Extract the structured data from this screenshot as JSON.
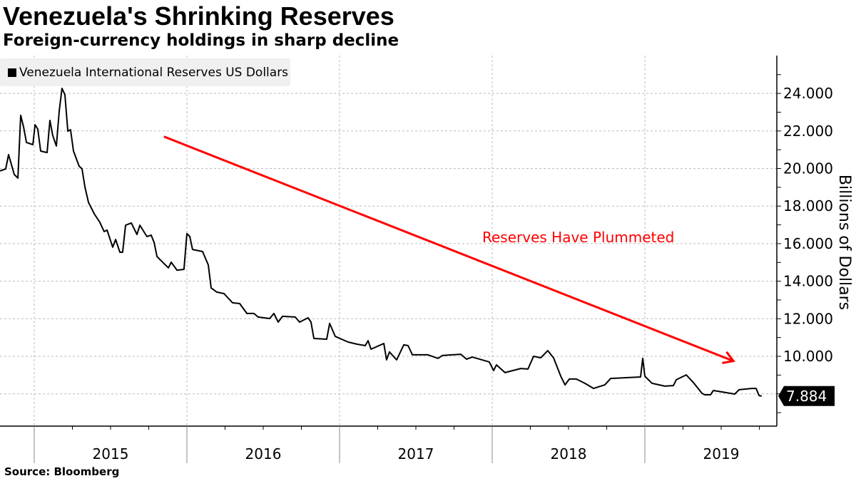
{
  "title": "Venezuela's Shrinking Reserves",
  "subtitle": "Foreign-currency holdings in sharp decline",
  "source": "Source: Bloomberg",
  "colors": {
    "line": "#000000",
    "annotation": "#ff0000",
    "grid": "#bbbbbb"
  },
  "chart_data": {
    "type": "line",
    "title": "Venezuela's Shrinking Reserves",
    "ylabel": "Billions of Dollars",
    "xlabel": "",
    "ylim": [
      6.0,
      25.7
    ],
    "xlim": [
      2014.776,
      2020.0
    ],
    "yticks": [
      10,
      12,
      14,
      16,
      18,
      20,
      22,
      24
    ],
    "ytick_labels": [
      "10.000",
      "12.000",
      "14.000",
      "16.000",
      "18.000",
      "20.000",
      "22.000",
      "24.000"
    ],
    "year_labels": [
      "2015",
      "2016",
      "2017",
      "2018",
      "2019"
    ],
    "grid": true,
    "legend_position": "top-left",
    "series": [
      {
        "name": "Venezuela International Reserves US Dollars",
        "x": [
          2014.776,
          2014.813,
          2014.832,
          2014.869,
          2014.893,
          2014.911,
          2014.93,
          2014.949,
          2014.991,
          2015.005,
          2015.023,
          2015.042,
          2015.084,
          2015.103,
          2015.121,
          2015.145,
          2015.164,
          2015.182,
          2015.201,
          2015.22,
          2015.238,
          2015.257,
          2015.294,
          2015.313,
          2015.332,
          2015.355,
          2015.393,
          2015.43,
          2015.458,
          2015.477,
          2015.514,
          2015.533,
          2015.561,
          2015.579,
          2015.598,
          2015.636,
          2015.673,
          2015.692,
          2015.738,
          2015.766,
          2015.785,
          2015.804,
          2015.86,
          2015.879,
          2015.897,
          2015.935,
          2015.981,
          2016.0,
          2016.019,
          2016.037,
          2016.103,
          2016.14,
          2016.159,
          2016.196,
          2016.243,
          2016.299,
          2016.346,
          2016.393,
          2016.439,
          2016.467,
          2016.542,
          2016.57,
          2016.598,
          2016.626,
          2016.71,
          2016.738,
          2016.794,
          2016.813,
          2016.832,
          2016.916,
          2016.935,
          2016.972,
          2017.056,
          2017.112,
          2017.168,
          2017.187,
          2017.206,
          2017.29,
          2017.308,
          2017.327,
          2017.374,
          2017.421,
          2017.449,
          2017.477,
          2017.579,
          2017.645,
          2017.673,
          2017.794,
          2017.832,
          2017.869,
          2017.981,
          2018.009,
          2018.028,
          2018.084,
          2018.187,
          2018.234,
          2018.271,
          2018.318,
          2018.364,
          2018.402,
          2018.449,
          2018.477,
          2018.505,
          2018.551,
          2018.607,
          2018.664,
          2018.738,
          2018.776,
          2018.972,
          2018.986,
          2019.0,
          2019.047,
          2019.131,
          2019.187,
          2019.206,
          2019.271,
          2019.318,
          2019.374,
          2019.393,
          2019.43,
          2019.449,
          2019.589,
          2019.617,
          2019.701,
          2019.729,
          2019.748,
          2019.766
        ],
        "values": [
          19.87,
          19.98,
          20.74,
          19.68,
          19.49,
          22.83,
          22.22,
          21.39,
          21.27,
          22.33,
          22.11,
          20.93,
          20.85,
          22.56,
          21.76,
          21.2,
          23.09,
          24.27,
          23.93,
          21.99,
          22.07,
          20.93,
          20.13,
          19.98,
          19.03,
          18.2,
          17.59,
          17.13,
          16.64,
          16.72,
          15.81,
          16.22,
          15.54,
          15.54,
          16.98,
          17.1,
          16.49,
          16.98,
          16.38,
          16.45,
          16.07,
          15.31,
          14.86,
          14.71,
          15.01,
          14.59,
          14.63,
          16.53,
          16.38,
          15.69,
          15.58,
          14.86,
          13.64,
          13.42,
          13.34,
          12.85,
          12.81,
          12.28,
          12.28,
          12.09,
          12.01,
          12.28,
          11.82,
          12.13,
          12.09,
          11.82,
          12.05,
          11.82,
          10.95,
          10.91,
          11.75,
          11.06,
          10.76,
          10.65,
          10.57,
          10.83,
          10.38,
          10.68,
          9.81,
          10.23,
          9.81,
          10.61,
          10.57,
          10.08,
          10.08,
          9.89,
          10.04,
          10.11,
          9.85,
          9.96,
          9.7,
          9.24,
          9.54,
          9.13,
          9.35,
          9.32,
          10.0,
          9.92,
          10.3,
          9.92,
          8.94,
          8.48,
          8.79,
          8.79,
          8.56,
          8.29,
          8.48,
          8.82,
          8.9,
          9.89,
          8.94,
          8.56,
          8.41,
          8.44,
          8.75,
          9.01,
          8.6,
          8.03,
          7.95,
          7.95,
          8.18,
          7.99,
          8.22,
          8.29,
          8.29,
          7.91,
          7.884
        ]
      }
    ],
    "last_value_label": "7.884",
    "annotations": [
      {
        "text": "Reserves Have Plummeted",
        "color": "#ff0000",
        "arrow_from": [
          2015.85,
          21.7
        ],
        "arrow_to": [
          2019.58,
          9.75
        ]
      }
    ]
  }
}
